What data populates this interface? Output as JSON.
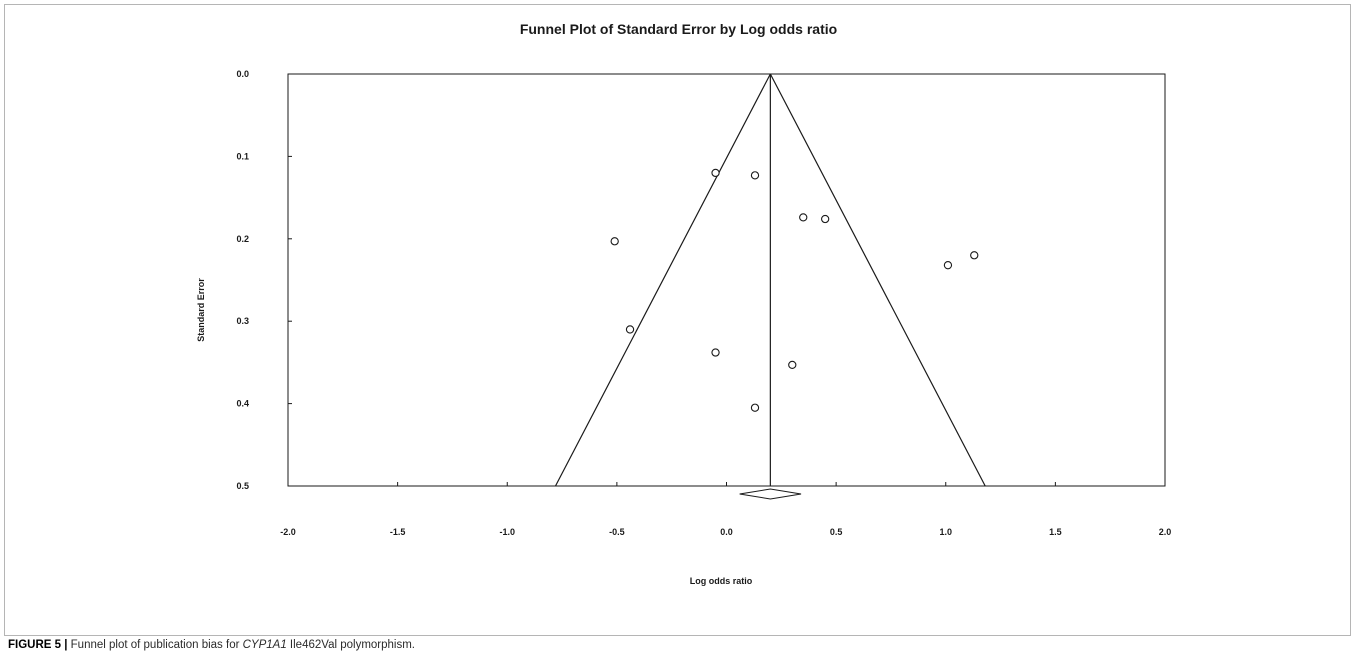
{
  "chart_data": {
    "type": "scatter",
    "title": "Funnel Plot of Standard Error by Log odds ratio",
    "xlabel": "Log odds ratio",
    "ylabel": "Standard Error",
    "xlim": [
      -2.0,
      2.0
    ],
    "ylim": [
      0.0,
      0.5
    ],
    "y_inverted": true,
    "x_ticks": [
      "-2.0",
      "-1.5",
      "-1.0",
      "-0.5",
      "0.0",
      "0.5",
      "1.0",
      "1.5",
      "2.0"
    ],
    "y_ticks": [
      "0.0",
      "0.1",
      "0.2",
      "0.3",
      "0.4",
      "0.5"
    ],
    "pooled_estimate": 0.2,
    "funnel_base": [
      -0.78,
      1.18
    ],
    "summary_diamond": {
      "lower": 0.06,
      "upper": 0.34
    },
    "points": [
      {
        "x": -0.05,
        "y": 0.12
      },
      {
        "x": 0.13,
        "y": 0.123
      },
      {
        "x": -0.51,
        "y": 0.203
      },
      {
        "x": 0.35,
        "y": 0.174
      },
      {
        "x": 0.45,
        "y": 0.176
      },
      {
        "x": 1.01,
        "y": 0.232
      },
      {
        "x": 1.13,
        "y": 0.22
      },
      {
        "x": -0.44,
        "y": 0.31
      },
      {
        "x": -0.05,
        "y": 0.338
      },
      {
        "x": 0.3,
        "y": 0.353
      },
      {
        "x": 0.13,
        "y": 0.405
      }
    ],
    "grid": false
  },
  "caption": {
    "figure_label": "FIGURE 5 |",
    "text_before": " Funnel plot of publication bias for ",
    "gene": "CYP1A1",
    "text_after": " Ile462Val polymorphism."
  }
}
